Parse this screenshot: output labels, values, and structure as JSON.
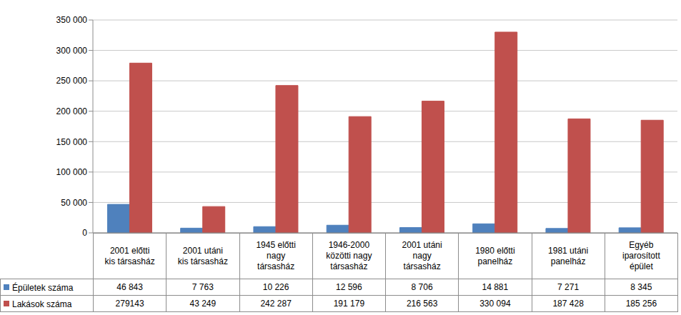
{
  "chart_data": {
    "type": "bar",
    "categories": [
      "2001 előtti\nkis társasház",
      "2001 utáni\nkis társasház",
      "1945 előtti\nnagy\ntársasház",
      "1946-2000\nközötti nagy\ntársasház",
      "2001 utáni\nnagy\ntársasház",
      "1980 előtti\npanelház",
      "1981 utáni\npanelház",
      "Egyéb\niparosított\népület"
    ],
    "series": [
      {
        "name": "Épületek száma",
        "color": "#4f81bd",
        "values": [
          46843,
          7763,
          10226,
          12596,
          8706,
          14881,
          7271,
          8345
        ],
        "value_labels": [
          "46 843",
          "7 763",
          "10 226",
          "12 596",
          "8 706",
          "14 881",
          "7 271",
          "8 345"
        ]
      },
      {
        "name": "Lakások száma",
        "color": "#c0504d",
        "values": [
          279143,
          43249,
          242287,
          191179,
          216563,
          330094,
          187428,
          185256
        ],
        "value_labels": [
          "279143",
          "43 249",
          "242 287",
          "191 179",
          "216 563",
          "330 094",
          "187 428",
          "185 256"
        ]
      }
    ],
    "ylim": [
      0,
      350000
    ],
    "yticks": [
      0,
      {
        "value": 50000,
        "label": "50 000"
      },
      {
        "value": 100000,
        "label": "100 000"
      },
      {
        "value": 150000,
        "label": "150 000"
      },
      {
        "value": 200000,
        "label": "200 000"
      },
      {
        "value": 250000,
        "label": "250 000"
      },
      {
        "value": 300000,
        "label": "300 000"
      },
      {
        "value": 350000,
        "label": "350 000"
      }
    ],
    "grid": true
  }
}
